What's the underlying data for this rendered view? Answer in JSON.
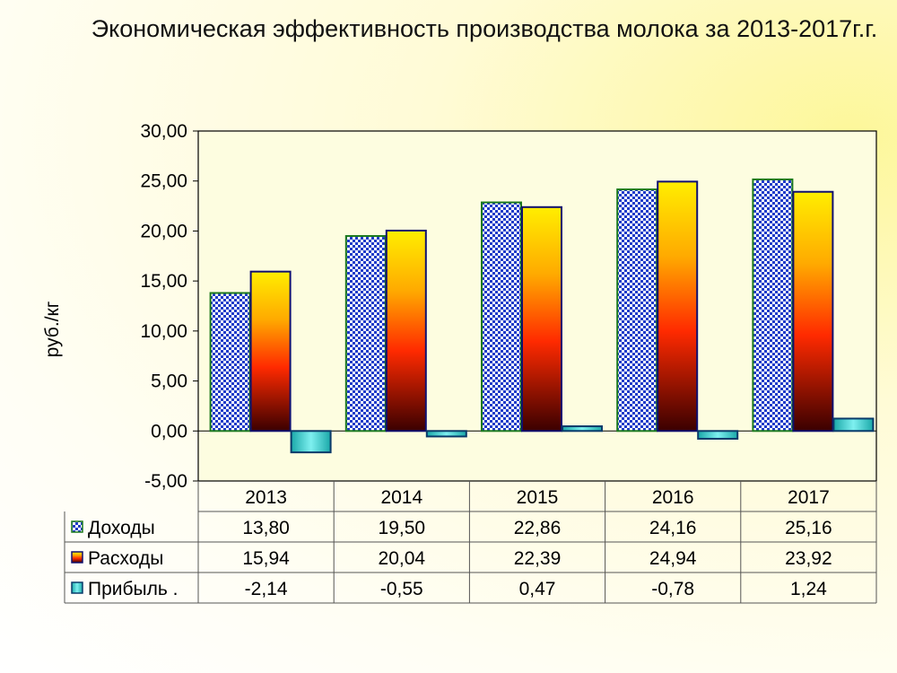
{
  "title": "Экономическая эффективность производства молока за 2013-2017г.г.",
  "chart_data": {
    "type": "bar",
    "title": "Экономическая эффективность производства молока за 2013-2017г.г.",
    "xlabel": "",
    "ylabel": "руб./кг",
    "ylim": [
      -5,
      30
    ],
    "yticks": [
      "-5,00",
      "0,00",
      "5,00",
      "10,00",
      "15,00",
      "20,00",
      "25,00",
      "30,00"
    ],
    "categories": [
      "2013",
      "2014",
      "2015",
      "2016",
      "2017"
    ],
    "series": [
      {
        "name": "Доходы",
        "values": [
          13.8,
          19.5,
          22.86,
          24.16,
          25.16
        ],
        "labels": [
          "13,80",
          "19,50",
          "22,86",
          "24,16",
          "25,16"
        ]
      },
      {
        "name": "Расходы",
        "values": [
          15.94,
          20.04,
          22.39,
          24.94,
          23.92
        ],
        "labels": [
          "15,94",
          "20,04",
          "22,39",
          "24,94",
          "23,92"
        ]
      },
      {
        "name": "Прибыль .",
        "values": [
          -2.14,
          -0.55,
          0.47,
          -0.78,
          1.24
        ],
        "labels": [
          "-2,14",
          "-0,55",
          "0,47",
          "-0,78",
          "1,24"
        ]
      }
    ],
    "grid": false,
    "legend": "data-table",
    "colors": {
      "plot_background": "#fdfde0",
      "income_checker": "#1f3bc8",
      "income_border": "#1d7a1d",
      "expense_top": "#ffee00",
      "expense_mid": "#ff2a00",
      "expense_bottom": "#3a0000",
      "expense_border": "#101070",
      "profit_fill": "#2fc6c6",
      "profit_border": "#0a3a6a"
    }
  }
}
